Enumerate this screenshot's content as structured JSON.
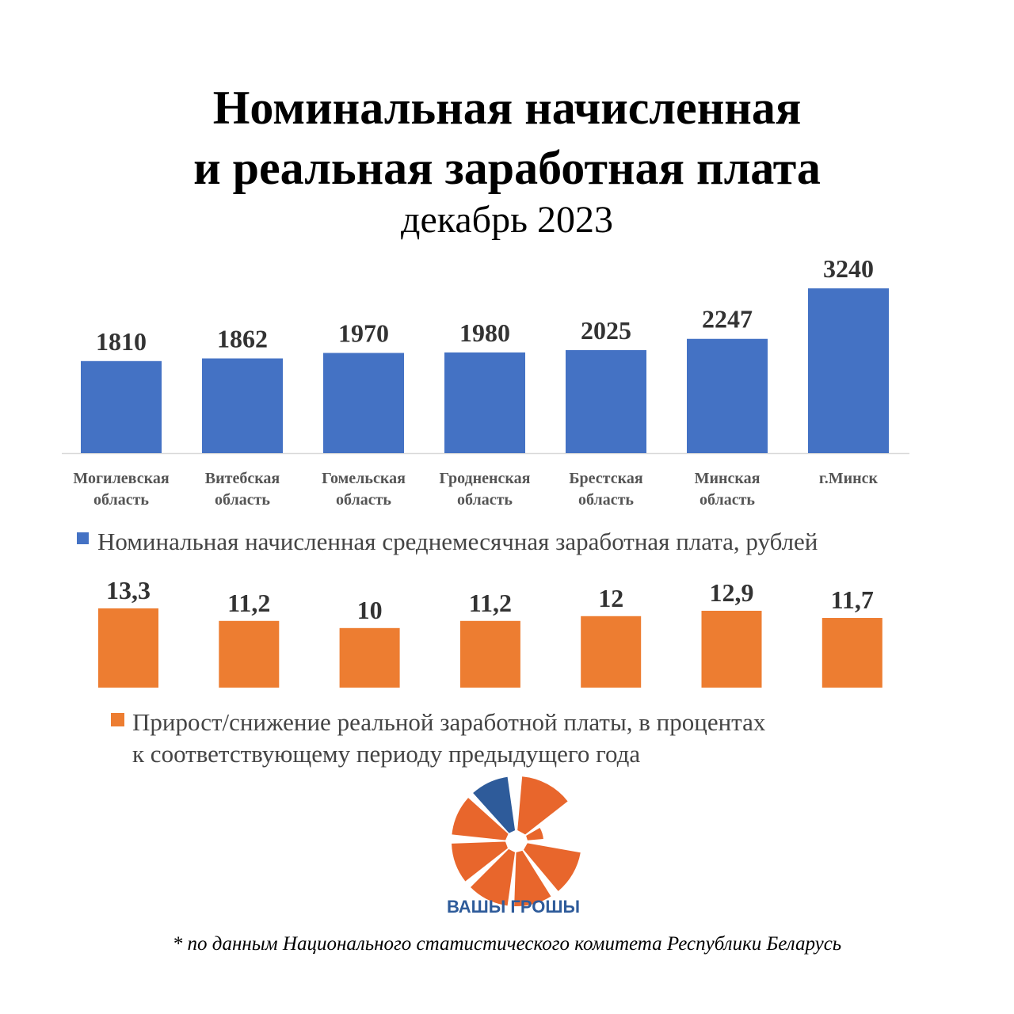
{
  "title_lines": [
    "Номинальная начисленная",
    "и реальная заработная плата"
  ],
  "subtitle": "декабрь 2023",
  "chart_data": [
    {
      "type": "bar",
      "categories": [
        [
          "Могилевская",
          "область"
        ],
        [
          "Витебская",
          "область"
        ],
        [
          "Гомельская",
          "область"
        ],
        [
          "Гродненская",
          "область"
        ],
        [
          "Брестская",
          "область"
        ],
        [
          "Минская",
          "область"
        ],
        [
          "г.Минск"
        ]
      ],
      "values": [
        1810,
        1862,
        1970,
        1980,
        2025,
        2247,
        3240
      ],
      "labels": [
        "1810",
        "1862",
        "1970",
        "1980",
        "2025",
        "2247",
        "3240"
      ],
      "legend": "Номинальная начисленная среднемесячная заработная плата, рублей",
      "color": "#4472c4",
      "ylim": [
        0,
        3240
      ]
    },
    {
      "type": "bar",
      "values": [
        13.3,
        11.2,
        10,
        11.2,
        12,
        12.9,
        11.7
      ],
      "labels": [
        "13,3",
        "11,2",
        "10",
        "11,2",
        "12",
        "12,9",
        "11,7"
      ],
      "legend": [
        "Прирост/снижение реальной заработной платы, в процентах",
        "к соответствующему периоду предыдущего года"
      ],
      "color": "#ed7d31",
      "ylim": [
        0,
        13.3
      ]
    }
  ],
  "logo": {
    "text": "ВАШЫ ГРОШЫ",
    "orange": "#e8662c",
    "blue": "#2e5b9a"
  },
  "source": "* по данным Национального статистического комитета Республики Беларусь"
}
